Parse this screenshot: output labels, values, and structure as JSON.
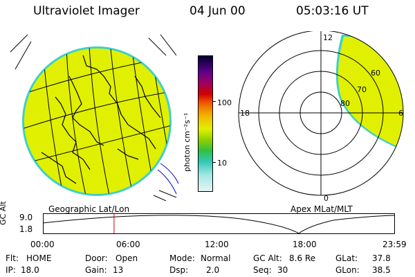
{
  "header": {
    "instrument": "Ultraviolet Imager",
    "date": "04 Jun 00",
    "time": "05:03:16 UT"
  },
  "colorbar": {
    "unit_label": "photon cm⁻²s⁻¹",
    "tick_100": "100",
    "tick_10": "10"
  },
  "geo_panel": {
    "label": "Geographic Lat/Lon"
  },
  "polar_panel": {
    "label": "Apex MLat/MLT",
    "mlt_12": "12",
    "mlt_18": "18",
    "mlt_6": "6",
    "mlt_0": "0",
    "lat_60": "60",
    "lat_70": "70",
    "lat_80": "80"
  },
  "altitude_plot": {
    "ylabel": "GC Alt",
    "y_top": "9.0",
    "y_bottom": "1.8",
    "x_ticks": [
      "00:00",
      "06:00",
      "12:00",
      "18:00",
      "23:59"
    ],
    "current_time_fraction": 0.201
  },
  "status": {
    "flt_label": "Flt:",
    "flt_value": "HOME",
    "door_label": "Door:",
    "door_value": "Open",
    "mode_label": "Mode:",
    "mode_value": "Normal",
    "gcalt_label": "GC Alt:",
    "gcalt_value": "8.6 Re",
    "glat_label": "GLat:",
    "glat_value": "37.8",
    "ip_label": "IP:",
    "ip_value": "18.0",
    "gain_label": "Gain:",
    "gain_value": "13",
    "dsp_label": "Dsp:",
    "dsp_value": "2.0",
    "seq_label": "Seq:",
    "seq_value": "30",
    "glon_label": "GLon:",
    "glon_value": "38.5"
  },
  "colors": {
    "fill": "#e0f000",
    "fill_edge": "#3fd0c8",
    "marker": "#d00000",
    "grid": "#000000"
  }
}
